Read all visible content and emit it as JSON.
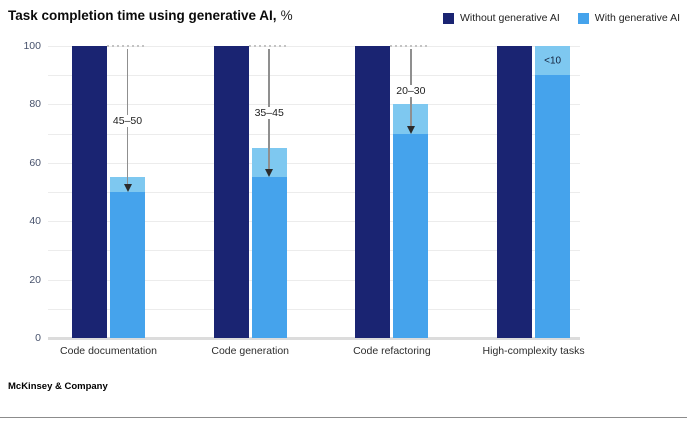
{
  "chart_data": {
    "type": "bar",
    "title": "Task completion time using generative AI,",
    "unit_label": "%",
    "categories": [
      "Code documentation",
      "Code generation",
      "Code refactoring",
      "High-complexity tasks"
    ],
    "series": [
      {
        "name": "Without generative AI",
        "color": "#1A2472",
        "values": [
          100,
          100,
          100,
          100
        ]
      },
      {
        "name": "With generative AI",
        "color": "#45A3EC",
        "cap_color": "#7EC8F0",
        "values_range": [
          [
            50,
            55
          ],
          [
            55,
            65
          ],
          [
            70,
            80
          ],
          [
            90,
            100
          ]
        ]
      }
    ],
    "annotations": [
      {
        "category_index": 0,
        "label": "45–50",
        "arrow_from": 100,
        "arrow_to": 50
      },
      {
        "category_index": 1,
        "label": "35–45",
        "arrow_from": 100,
        "arrow_to": 55
      },
      {
        "category_index": 2,
        "label": "20–30",
        "arrow_from": 100,
        "arrow_to": 70
      },
      {
        "category_index": 3,
        "label": "<10",
        "inside_bar": true
      }
    ],
    "ylim": [
      0,
      100
    ],
    "yticks": [
      0,
      20,
      40,
      60,
      80,
      100
    ],
    "gridline_step": 10,
    "grid": true,
    "legend_position": "top-right",
    "source": "McKinsey & Company"
  }
}
